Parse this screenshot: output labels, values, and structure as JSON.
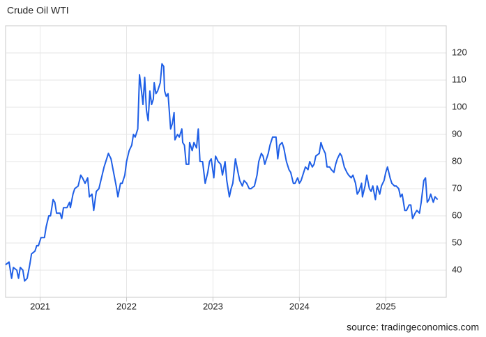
{
  "chart_data": {
    "type": "line",
    "title": "Crude Oil WTI",
    "source": "source: tradingeconomics.com",
    "x": [
      2020.6,
      2020.64,
      2020.67,
      2020.69,
      2020.73,
      2020.75,
      2020.77,
      2020.8,
      2020.82,
      2020.85,
      2020.88,
      2020.9,
      2020.94,
      2020.96,
      2020.98,
      2021.01,
      2021.05,
      2021.07,
      2021.1,
      2021.12,
      2021.15,
      2021.17,
      2021.19,
      2021.23,
      2021.25,
      2021.27,
      2021.31,
      2021.34,
      2021.35,
      2021.38,
      2021.4,
      2021.44,
      2021.47,
      2021.49,
      2021.52,
      2021.55,
      2021.57,
      2021.6,
      2021.62,
      2021.65,
      2021.68,
      2021.71,
      2021.74,
      2021.77,
      2021.79,
      2021.82,
      2021.85,
      2021.88,
      2021.9,
      2021.93,
      2021.95,
      2021.98,
      2022.0,
      2022.03,
      2022.06,
      2022.08,
      2022.1,
      2022.13,
      2022.15,
      2022.18,
      2022.19,
      2022.21,
      2022.23,
      2022.25,
      2022.27,
      2022.29,
      2022.31,
      2022.32,
      2022.34,
      2022.36,
      2022.39,
      2022.41,
      2022.43,
      2022.44,
      2022.46,
      2022.48,
      2022.51,
      2022.53,
      2022.55,
      2022.56,
      2022.59,
      2022.61,
      2022.64,
      2022.65,
      2022.67,
      2022.69,
      2022.72,
      2022.73,
      2022.76,
      2022.78,
      2022.81,
      2022.83,
      2022.85,
      2022.88,
      2022.91,
      2022.94,
      2022.96,
      2022.98,
      2023.01,
      2023.03,
      2023.06,
      2023.09,
      2023.11,
      2023.14,
      2023.16,
      2023.19,
      2023.21,
      2023.23,
      2023.26,
      2023.29,
      2023.31,
      2023.34,
      2023.36,
      2023.39,
      2023.42,
      2023.44,
      2023.48,
      2023.51,
      2023.53,
      2023.56,
      2023.58,
      2023.6,
      2023.64,
      2023.66,
      2023.69,
      2023.71,
      2023.73,
      2023.75,
      2023.77,
      2023.8,
      2023.82,
      2023.85,
      2023.88,
      2023.9,
      2023.93,
      2023.95,
      2023.98,
      2024.0,
      2024.02,
      2024.05,
      2024.07,
      2024.1,
      2024.12,
      2024.15,
      2024.17,
      2024.19,
      2024.23,
      2024.25,
      2024.27,
      2024.3,
      2024.32,
      2024.35,
      2024.37,
      2024.4,
      2024.42,
      2024.44,
      2024.47,
      2024.49,
      2024.52,
      2024.55,
      2024.57,
      2024.6,
      2024.62,
      2024.65,
      2024.67,
      2024.69,
      2024.72,
      2024.73,
      2024.76,
      2024.78,
      2024.81,
      2024.83,
      2024.85,
      2024.88,
      2024.9,
      2024.93,
      2024.95,
      2024.98,
      2025.0,
      2025.02,
      2025.05,
      2025.07,
      2025.1,
      2025.12,
      2025.15,
      2025.17,
      2025.19,
      2025.22,
      2025.24,
      2025.27,
      2025.29,
      2025.31,
      2025.34,
      2025.36,
      2025.39,
      2025.41,
      2025.44,
      2025.46,
      2025.48,
      2025.5,
      2025.52,
      2025.55,
      2025.57,
      2025.6
    ],
    "series": [
      {
        "color": "#1f5fe6",
        "values": [
          42,
          43,
          37,
          41,
          40,
          37,
          41,
          40,
          36,
          37,
          42,
          46,
          47,
          49,
          49,
          52,
          52,
          56,
          60,
          60,
          66,
          65,
          61,
          61,
          59,
          63,
          63,
          65,
          63,
          68,
          70,
          71,
          75,
          74,
          72,
          74,
          67,
          68,
          62,
          69,
          70,
          74,
          78,
          81,
          83,
          81,
          76,
          71,
          67,
          72,
          72,
          75,
          80,
          84,
          86,
          90,
          89,
          92,
          112,
          104,
          101,
          111,
          99,
          95,
          106,
          101,
          103,
          109,
          105,
          106,
          109,
          116,
          115,
          106,
          104,
          105,
          92,
          94,
          98,
          88,
          90,
          89,
          92,
          87,
          86,
          79,
          79,
          87,
          84,
          87,
          85,
          92,
          80,
          80,
          72,
          76,
          80,
          81,
          74,
          82,
          80,
          79,
          75,
          80,
          73,
          67,
          70,
          72,
          81,
          76,
          73,
          71,
          73,
          72,
          70,
          70,
          71,
          75,
          80,
          83,
          82,
          79,
          83,
          86,
          89,
          89,
          89,
          81,
          86,
          87,
          85,
          80,
          77,
          76,
          72,
          72,
          74,
          72,
          73,
          76,
          78,
          77,
          80,
          78,
          79,
          82,
          83,
          87,
          85,
          83,
          78,
          78,
          77,
          76,
          79,
          81,
          83,
          82,
          78,
          76,
          75,
          74,
          75,
          72,
          68,
          69,
          72,
          67,
          71,
          75,
          70,
          69,
          71,
          66,
          71,
          68,
          71,
          73,
          76,
          78,
          74,
          72,
          71,
          71,
          70,
          67,
          68,
          62,
          62,
          64,
          64,
          59,
          61,
          62,
          61,
          65,
          73,
          74,
          65,
          66,
          68,
          65,
          67,
          66
        ]
      }
    ],
    "xlim": [
      2020.6,
      2025.7
    ],
    "xticks": [
      2021,
      2022,
      2023,
      2024,
      2025
    ],
    "ylim": [
      30,
      130
    ],
    "yticks": [
      40,
      50,
      60,
      70,
      80,
      90,
      100,
      110,
      120
    ],
    "grid": true
  }
}
